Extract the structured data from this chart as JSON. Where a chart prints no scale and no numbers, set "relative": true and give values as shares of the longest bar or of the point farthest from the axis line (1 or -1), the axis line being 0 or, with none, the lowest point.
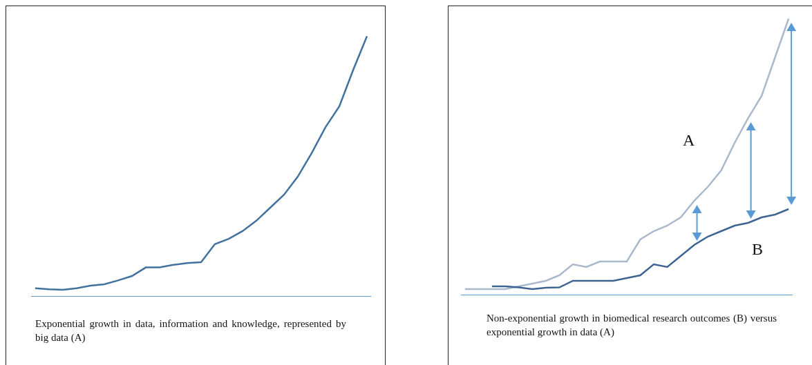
{
  "chart_data": [
    {
      "type": "line",
      "relative": true,
      "categories": [
        null,
        null,
        null,
        null,
        null,
        null,
        null,
        null,
        null,
        null,
        null,
        null,
        null,
        null,
        null,
        null,
        null,
        null,
        null,
        null,
        null,
        null,
        null,
        null,
        null
      ],
      "series": [
        {
          "color": "#41719c",
          "values": [
            0.03,
            0.026,
            0.024,
            0.03,
            0.04,
            0.045,
            0.06,
            0.077,
            0.11,
            0.11,
            0.12,
            0.127,
            0.13,
            0.2,
            0.22,
            0.25,
            0.29,
            0.34,
            0.39,
            0.46,
            0.55,
            0.65,
            0.73,
            0.87,
            1
          ]
        }
      ],
      "annotations": [
        "Exponential growth in data, information and knowledge, represented by big data (A)"
      ]
    },
    {
      "type": "line",
      "relative": true,
      "categories": [
        null,
        null,
        null,
        null,
        null,
        null,
        null,
        null,
        null,
        null,
        null,
        null,
        null,
        null,
        null,
        null,
        null,
        null,
        null,
        null,
        null,
        null,
        null,
        null,
        null
      ],
      "series": [
        {
          "name": "A",
          "color": "#a9b8cb",
          "values": [
            0.02,
            0.02,
            0.02,
            0.02,
            0.03,
            0.04,
            0.05,
            0.07,
            0.11,
            0.1,
            0.12,
            0.12,
            0.12,
            0.2,
            0.23,
            0.25,
            0.28,
            0.34,
            0.39,
            0.45,
            0.55,
            0.64,
            0.72,
            0.86,
            1
          ]
        },
        {
          "name": "B",
          "color": "#3d6491",
          "values": [
            null,
            null,
            0.03,
            0.03,
            0.026,
            0.02,
            0.025,
            0.026,
            0.05,
            0.05,
            0.05,
            0.05,
            0.06,
            0.07,
            0.11,
            0.1,
            0.14,
            0.18,
            0.21,
            0.23,
            0.25,
            0.26,
            0.28,
            0.29,
            0.31
          ]
        }
      ],
      "annotations": [
        "Non-exponential growth in biomedical research outcomes (B) versus exponential growth in data (A)"
      ]
    }
  ]
}
